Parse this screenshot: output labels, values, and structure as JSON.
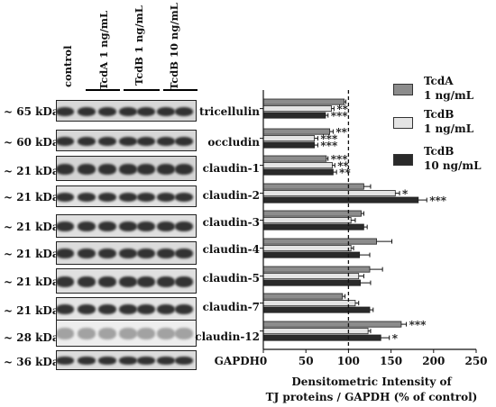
{
  "lanes": [
    "control",
    "TcdA 1 ng/mL",
    "TcdB 1 ng/mL",
    "TcdB 10 ng/mL"
  ],
  "blot_rows": [
    {
      "kda": "~ 65 kDa",
      "protein": "tricellulin"
    },
    {
      "kda": "~ 60 kDa",
      "protein": "occludin"
    },
    {
      "kda": "~ 21 kDa",
      "protein": "claudin-1"
    },
    {
      "kda": "~ 21 kDa",
      "protein": "claudin-2"
    },
    {
      "kda": "~ 21 kDa",
      "protein": "claudin-3"
    },
    {
      "kda": "~ 21 kDa",
      "protein": "claudin-4"
    },
    {
      "kda": "~ 21 kDa",
      "protein": "claudin-5"
    },
    {
      "kda": "~ 21 kDa",
      "protein": "claudin-7"
    },
    {
      "kda": "~ 28 kDa",
      "protein": "claudin-12"
    },
    {
      "kda": "~ 36 kDa",
      "protein": "GAPDH"
    }
  ],
  "x_axis_label": [
    "Densitometric Intensity of",
    "TJ proteins / GAPDH (% of control)"
  ],
  "legend": [
    {
      "label": [
        "TcdA",
        "1 ng/mL"
      ],
      "color": "#8c8c8c"
    },
    {
      "label": [
        "TcdB",
        "1 ng/mL"
      ],
      "color": "#e4e4e4"
    },
    {
      "label": [
        "TcdB",
        "10 ng/mL"
      ],
      "color": "#2a2a2a"
    }
  ],
  "chart_data": {
    "type": "bar",
    "orientation": "horizontal",
    "categories": [
      "tricellulin",
      "occludin",
      "claudin-1",
      "claudin-2",
      "claudin-3",
      "claudin-4",
      "claudin-5",
      "claudin-7",
      "claudin-12"
    ],
    "series": [
      {
        "name": "TcdA 1 ng/mL",
        "color": "#8c8c8c",
        "values": [
          95,
          78,
          74,
          118,
          115,
          133,
          125,
          93,
          162
        ],
        "errors": [
          2,
          4,
          2,
          8,
          3,
          18,
          15,
          3,
          6
        ],
        "significance": [
          "",
          "**",
          "***",
          "",
          "",
          "",
          "",
          "",
          "***"
        ]
      },
      {
        "name": "TcdB 1 ng/mL",
        "color": "#e4e4e4",
        "values": [
          80,
          60,
          81,
          155,
          103,
          103,
          112,
          108,
          123
        ],
        "errors": [
          3,
          4,
          3,
          5,
          5,
          3,
          6,
          4,
          3
        ],
        "significance": [
          "**",
          "***",
          "**",
          "*",
          "",
          "",
          "",
          "",
          ""
        ]
      },
      {
        "name": "TcdB 10 ng/mL",
        "color": "#2a2a2a",
        "values": [
          73,
          60,
          82,
          182,
          118,
          113,
          114,
          125,
          138
        ],
        "errors": [
          3,
          4,
          4,
          10,
          4,
          12,
          12,
          4,
          10
        ],
        "significance": [
          "***",
          "***",
          "**",
          "***",
          "",
          "",
          "",
          "",
          "*"
        ]
      }
    ],
    "xlim": [
      0,
      250
    ],
    "xticks": [
      "0",
      "50",
      "100",
      "150",
      "200",
      "250"
    ],
    "reference_line": 100,
    "grid": false,
    "legend_position": "right"
  }
}
